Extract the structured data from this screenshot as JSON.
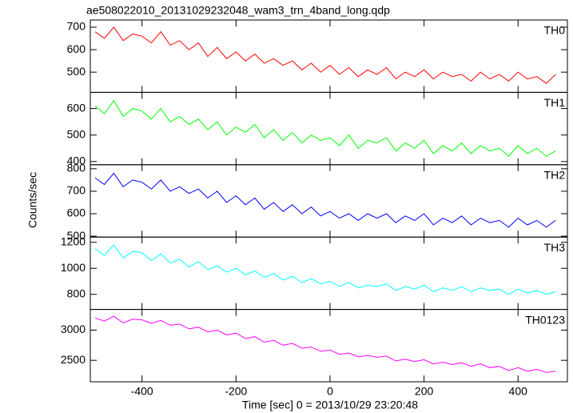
{
  "chart_data": {
    "type": "line",
    "title": "ae508022010_20131029232048_wam3_trn_4band_long.qdp",
    "xlabel": "Time [sec] 0 = 2013/10/29 23:20:48",
    "ylabel": "Counts/sec",
    "xlim": [
      -510,
      505
    ],
    "xticks": [
      -400,
      -200,
      0,
      200,
      400
    ],
    "x": [
      -500,
      -480,
      -460,
      -440,
      -420,
      -400,
      -380,
      -360,
      -340,
      -320,
      -300,
      -280,
      -260,
      -240,
      -220,
      -200,
      -180,
      -160,
      -140,
      -120,
      -100,
      -80,
      -60,
      -40,
      -20,
      0,
      20,
      40,
      60,
      80,
      100,
      120,
      140,
      160,
      180,
      200,
      220,
      240,
      260,
      280,
      300,
      320,
      340,
      360,
      380,
      400,
      420,
      440,
      460,
      480
    ],
    "series": [
      {
        "name": "TH0",
        "color": "#ff0000",
        "ylim": [
          410,
          732
        ],
        "yticks": [
          500,
          600,
          700
        ],
        "values": [
          680,
          650,
          700,
          640,
          670,
          660,
          630,
          680,
          620,
          640,
          600,
          630,
          570,
          610,
          560,
          590,
          550,
          580,
          540,
          560,
          530,
          550,
          510,
          540,
          500,
          530,
          490,
          520,
          480,
          510,
          490,
          520,
          470,
          500,
          480,
          510,
          470,
          500,
          480,
          490,
          460,
          500,
          470,
          490,
          460,
          500,
          470,
          480,
          450,
          490
        ]
      },
      {
        "name": "TH1",
        "color": "#00ff00",
        "ylim": [
          388,
          661
        ],
        "yticks": [
          400,
          500,
          600
        ],
        "values": [
          610,
          580,
          630,
          570,
          600,
          590,
          560,
          600,
          550,
          570,
          540,
          560,
          520,
          550,
          500,
          530,
          510,
          540,
          490,
          520,
          480,
          510,
          470,
          500,
          480,
          490,
          460,
          500,
          450,
          480,
          470,
          490,
          440,
          470,
          450,
          480,
          430,
          460,
          440,
          470,
          430,
          460,
          440,
          450,
          420,
          460,
          430,
          450,
          420,
          440
        ]
      },
      {
        "name": "TH2",
        "color": "#0000ff",
        "ylim": [
          496,
          818
        ],
        "yticks": [
          500,
          600,
          700,
          800
        ],
        "values": [
          760,
          730,
          780,
          720,
          750,
          740,
          710,
          750,
          700,
          720,
          690,
          710,
          670,
          700,
          650,
          680,
          640,
          670,
          620,
          650,
          610,
          640,
          600,
          630,
          590,
          610,
          580,
          600,
          570,
          600,
          580,
          600,
          560,
          590,
          570,
          600,
          550,
          580,
          560,
          590,
          550,
          580,
          560,
          570,
          540,
          580,
          550,
          570,
          540,
          570
        ]
      },
      {
        "name": "TH3",
        "color": "#00ffff",
        "ylim": [
          684,
          1240
        ],
        "yticks": [
          800,
          1000,
          1200
        ],
        "values": [
          1150,
          1100,
          1180,
          1080,
          1130,
          1120,
          1060,
          1110,
          1040,
          1070,
          1010,
          1050,
          990,
          1020,
          970,
          1000,
          950,
          980,
          930,
          960,
          910,
          940,
          890,
          920,
          880,
          900,
          860,
          890,
          850,
          870,
          860,
          880,
          830,
          860,
          840,
          870,
          820,
          850,
          830,
          860,
          820,
          850,
          830,
          840,
          800,
          840,
          810,
          830,
          800,
          820
        ]
      },
      {
        "name": "TH0123",
        "color": "#ff00ff",
        "ylim": [
          2145,
          3342
        ],
        "yticks": [
          2500,
          3000
        ],
        "values": [
          3200,
          3150,
          3230,
          3120,
          3180,
          3170,
          3110,
          3160,
          3080,
          3100,
          3020,
          3050,
          2970,
          3000,
          2920,
          2950,
          2860,
          2890,
          2800,
          2830,
          2750,
          2780,
          2700,
          2720,
          2650,
          2670,
          2600,
          2620,
          2560,
          2580,
          2550,
          2570,
          2490,
          2520,
          2480,
          2510,
          2440,
          2470,
          2430,
          2460,
          2400,
          2440,
          2380,
          2400,
          2330,
          2380,
          2320,
          2350,
          2300,
          2320
        ]
      }
    ]
  }
}
